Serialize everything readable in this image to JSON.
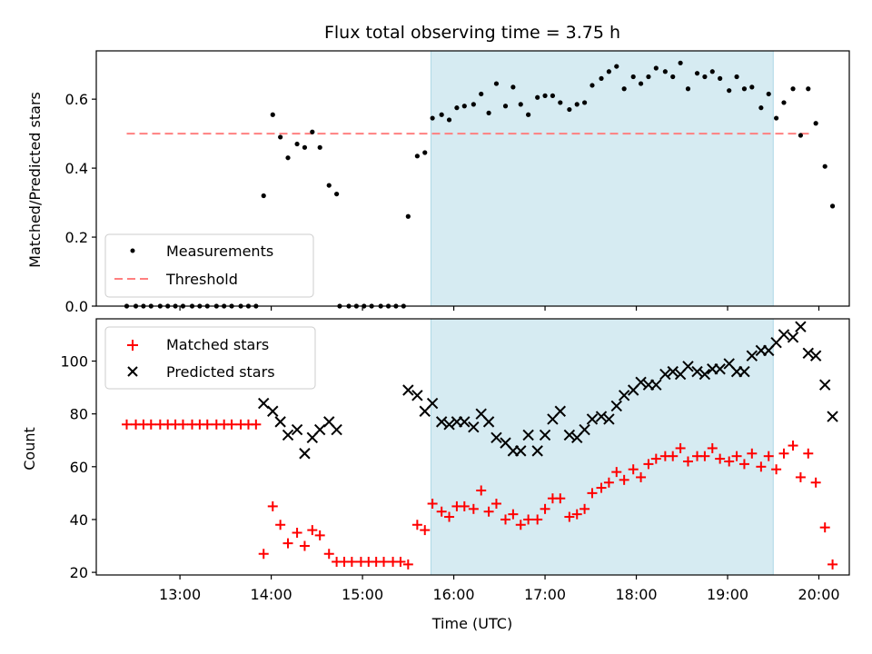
{
  "chart_data": [
    {
      "type": "scatter",
      "title": "Flux total observing time = 3.75 h",
      "xlabel": "",
      "ylabel": "Matched/Predicted stars",
      "xlim": [
        "12:05",
        "20:20"
      ],
      "ylim": [
        0,
        0.74
      ],
      "y_ticks": [
        "0.0",
        "0.2",
        "0.4",
        "0.6"
      ],
      "observing_window": {
        "start": "15:45",
        "end": "19:30",
        "color": "#add8e6"
      },
      "threshold": {
        "name": "Threshold",
        "y": 0.5,
        "x_range": [
          "12:25",
          "19:55"
        ],
        "color": "#ff8080"
      },
      "legend_position": "lower-left",
      "series": [
        {
          "name": "Measurements",
          "color": "#000000",
          "marker": "dot",
          "points": [
            [
              "12:25",
              0
            ],
            [
              "12:31",
              0
            ],
            [
              "12:36",
              0
            ],
            [
              "12:41",
              0
            ],
            [
              "12:47",
              0
            ],
            [
              "12:52",
              0
            ],
            [
              "12:57",
              0
            ],
            [
              "13:02",
              0
            ],
            [
              "13:08",
              0
            ],
            [
              "13:13",
              0
            ],
            [
              "13:18",
              0
            ],
            [
              "13:24",
              0
            ],
            [
              "13:29",
              0
            ],
            [
              "13:34",
              0
            ],
            [
              "13:40",
              0
            ],
            [
              "13:45",
              0
            ],
            [
              "13:50",
              0
            ],
            [
              "13:55",
              0.32
            ],
            [
              "14:01",
              0.555
            ],
            [
              "14:06",
              0.49
            ],
            [
              "14:11",
              0.43
            ],
            [
              "14:17",
              0.47
            ],
            [
              "14:22",
              0.46
            ],
            [
              "14:27",
              0.505
            ],
            [
              "14:32",
              0.46
            ],
            [
              "14:38",
              0.35
            ],
            [
              "14:43",
              0.325
            ],
            [
              "14:45",
              0
            ],
            [
              "14:51",
              0
            ],
            [
              "14:56",
              0
            ],
            [
              "15:01",
              0
            ],
            [
              "15:06",
              0
            ],
            [
              "15:12",
              0
            ],
            [
              "15:17",
              0
            ],
            [
              "15:22",
              0
            ],
            [
              "15:27",
              0
            ],
            [
              "15:30",
              0.26
            ],
            [
              "15:36",
              0.435
            ],
            [
              "15:41",
              0.445
            ],
            [
              "15:46",
              0.545
            ],
            [
              "15:52",
              0.555
            ],
            [
              "15:57",
              0.54
            ],
            [
              "16:02",
              0.575
            ],
            [
              "16:07",
              0.58
            ],
            [
              "16:13",
              0.585
            ],
            [
              "16:18",
              0.615
            ],
            [
              "16:23",
              0.56
            ],
            [
              "16:28",
              0.645
            ],
            [
              "16:34",
              0.58
            ],
            [
              "16:39",
              0.635
            ],
            [
              "16:44",
              0.585
            ],
            [
              "16:49",
              0.555
            ],
            [
              "16:55",
              0.605
            ],
            [
              "17:00",
              0.61
            ],
            [
              "17:05",
              0.61
            ],
            [
              "17:10",
              0.59
            ],
            [
              "17:16",
              0.57
            ],
            [
              "17:21",
              0.585
            ],
            [
              "17:26",
              0.59
            ],
            [
              "17:31",
              0.64
            ],
            [
              "17:37",
              0.66
            ],
            [
              "17:42",
              0.68
            ],
            [
              "17:47",
              0.695
            ],
            [
              "17:52",
              0.63
            ],
            [
              "17:58",
              0.665
            ],
            [
              "18:03",
              0.645
            ],
            [
              "18:08",
              0.665
            ],
            [
              "18:13",
              0.69
            ],
            [
              "18:19",
              0.68
            ],
            [
              "18:24",
              0.665
            ],
            [
              "18:29",
              0.705
            ],
            [
              "18:34",
              0.63
            ],
            [
              "18:40",
              0.675
            ],
            [
              "18:45",
              0.665
            ],
            [
              "18:50",
              0.68
            ],
            [
              "18:55",
              0.66
            ],
            [
              "19:01",
              0.625
            ],
            [
              "19:06",
              0.665
            ],
            [
              "19:11",
              0.63
            ],
            [
              "19:16",
              0.635
            ],
            [
              "19:22",
              0.575
            ],
            [
              "19:27",
              0.615
            ],
            [
              "19:32",
              0.545
            ],
            [
              "19:37",
              0.59
            ],
            [
              "19:43",
              0.63
            ],
            [
              "19:48",
              0.495
            ],
            [
              "19:53",
              0.63
            ],
            [
              "19:58",
              0.53
            ],
            [
              "20:04",
              0.405
            ],
            [
              "20:09",
              0.29
            ]
          ]
        }
      ]
    },
    {
      "type": "scatter",
      "title": "",
      "xlabel": "Time (UTC)",
      "ylabel": "Count",
      "xlim": [
        "12:05",
        "20:20"
      ],
      "ylim": [
        19,
        116
      ],
      "x_ticks": [
        "13:00",
        "14:00",
        "15:00",
        "16:00",
        "17:00",
        "18:00",
        "19:00",
        "20:00"
      ],
      "y_ticks": [
        "20",
        "40",
        "60",
        "80",
        "100"
      ],
      "observing_window": {
        "start": "15:45",
        "end": "19:30",
        "color": "#add8e6"
      },
      "legend_position": "upper-left",
      "series": [
        {
          "name": "Matched stars",
          "color": "#ff0000",
          "marker": "plus",
          "points": [
            [
              "12:25",
              76
            ],
            [
              "12:31",
              76
            ],
            [
              "12:36",
              76
            ],
            [
              "12:41",
              76
            ],
            [
              "12:47",
              76
            ],
            [
              "12:52",
              76
            ],
            [
              "12:57",
              76
            ],
            [
              "13:02",
              76
            ],
            [
              "13:08",
              76
            ],
            [
              "13:13",
              76
            ],
            [
              "13:18",
              76
            ],
            [
              "13:24",
              76
            ],
            [
              "13:29",
              76
            ],
            [
              "13:34",
              76
            ],
            [
              "13:40",
              76
            ],
            [
              "13:45",
              76
            ],
            [
              "13:50",
              76
            ],
            [
              "13:55",
              27
            ],
            [
              "14:01",
              45
            ],
            [
              "14:06",
              38
            ],
            [
              "14:11",
              31
            ],
            [
              "14:17",
              35
            ],
            [
              "14:22",
              30
            ],
            [
              "14:27",
              36
            ],
            [
              "14:32",
              34
            ],
            [
              "14:38",
              27
            ],
            [
              "14:43",
              24
            ],
            [
              "14:48",
              24
            ],
            [
              "14:53",
              24
            ],
            [
              "14:59",
              24
            ],
            [
              "15:04",
              24
            ],
            [
              "15:09",
              24
            ],
            [
              "15:14",
              24
            ],
            [
              "15:20",
              24
            ],
            [
              "15:25",
              24
            ],
            [
              "15:30",
              23
            ],
            [
              "15:36",
              38
            ],
            [
              "15:41",
              36
            ],
            [
              "15:46",
              46
            ],
            [
              "15:52",
              43
            ],
            [
              "15:57",
              41
            ],
            [
              "16:02",
              45
            ],
            [
              "16:07",
              45
            ],
            [
              "16:13",
              44
            ],
            [
              "16:18",
              51
            ],
            [
              "16:23",
              43
            ],
            [
              "16:28",
              46
            ],
            [
              "16:34",
              40
            ],
            [
              "16:39",
              42
            ],
            [
              "16:44",
              38
            ],
            [
              "16:49",
              40
            ],
            [
              "16:55",
              40
            ],
            [
              "17:00",
              44
            ],
            [
              "17:05",
              48
            ],
            [
              "17:10",
              48
            ],
            [
              "17:16",
              41
            ],
            [
              "17:21",
              42
            ],
            [
              "17:26",
              44
            ],
            [
              "17:31",
              50
            ],
            [
              "17:37",
              52
            ],
            [
              "17:42",
              54
            ],
            [
              "17:47",
              58
            ],
            [
              "17:52",
              55
            ],
            [
              "17:58",
              59
            ],
            [
              "18:03",
              56
            ],
            [
              "18:08",
              61
            ],
            [
              "18:13",
              63
            ],
            [
              "18:19",
              64
            ],
            [
              "18:24",
              64
            ],
            [
              "18:29",
              67
            ],
            [
              "18:34",
              62
            ],
            [
              "18:40",
              64
            ],
            [
              "18:45",
              64
            ],
            [
              "18:50",
              67
            ],
            [
              "18:55",
              63
            ],
            [
              "19:01",
              62
            ],
            [
              "19:06",
              64
            ],
            [
              "19:11",
              61
            ],
            [
              "19:16",
              65
            ],
            [
              "19:22",
              60
            ],
            [
              "19:27",
              64
            ],
            [
              "19:32",
              59
            ],
            [
              "19:37",
              65
            ],
            [
              "19:43",
              68
            ],
            [
              "19:48",
              56
            ],
            [
              "19:53",
              65
            ],
            [
              "19:58",
              54
            ],
            [
              "20:04",
              37
            ],
            [
              "20:09",
              23
            ]
          ]
        },
        {
          "name": "Predicted stars",
          "color": "#000000",
          "marker": "x",
          "points": [
            [
              "13:55",
              84
            ],
            [
              "14:01",
              81
            ],
            [
              "14:06",
              77
            ],
            [
              "14:11",
              72
            ],
            [
              "14:17",
              74
            ],
            [
              "14:22",
              65
            ],
            [
              "14:27",
              71
            ],
            [
              "14:32",
              74
            ],
            [
              "14:38",
              77
            ],
            [
              "14:43",
              74
            ],
            [
              "15:30",
              89
            ],
            [
              "15:36",
              87
            ],
            [
              "15:41",
              81
            ],
            [
              "15:46",
              84
            ],
            [
              "15:52",
              77
            ],
            [
              "15:57",
              76
            ],
            [
              "16:02",
              77
            ],
            [
              "16:07",
              77
            ],
            [
              "16:13",
              75
            ],
            [
              "16:18",
              80
            ],
            [
              "16:23",
              77
            ],
            [
              "16:28",
              71
            ],
            [
              "16:34",
              69
            ],
            [
              "16:39",
              66
            ],
            [
              "16:44",
              66
            ],
            [
              "16:49",
              72
            ],
            [
              "16:55",
              66
            ],
            [
              "17:00",
              72
            ],
            [
              "17:05",
              78
            ],
            [
              "17:10",
              81
            ],
            [
              "17:16",
              72
            ],
            [
              "17:21",
              71
            ],
            [
              "17:26",
              74
            ],
            [
              "17:31",
              78
            ],
            [
              "17:37",
              79
            ],
            [
              "17:42",
              78
            ],
            [
              "17:47",
              83
            ],
            [
              "17:52",
              87
            ],
            [
              "17:58",
              89
            ],
            [
              "18:03",
              92
            ],
            [
              "18:08",
              91
            ],
            [
              "18:13",
              91
            ],
            [
              "18:19",
              95
            ],
            [
              "18:24",
              96
            ],
            [
              "18:29",
              95
            ],
            [
              "18:34",
              98
            ],
            [
              "18:40",
              96
            ],
            [
              "18:45",
              95
            ],
            [
              "18:50",
              97
            ],
            [
              "18:55",
              97
            ],
            [
              "19:01",
              99
            ],
            [
              "19:06",
              96
            ],
            [
              "19:11",
              96
            ],
            [
              "19:16",
              102
            ],
            [
              "19:22",
              104
            ],
            [
              "19:27",
              104
            ],
            [
              "19:32",
              107
            ],
            [
              "19:37",
              110
            ],
            [
              "19:43",
              109
            ],
            [
              "19:48",
              113
            ],
            [
              "19:53",
              103
            ],
            [
              "19:58",
              102
            ],
            [
              "20:04",
              91
            ],
            [
              "20:09",
              79
            ]
          ]
        }
      ]
    }
  ]
}
